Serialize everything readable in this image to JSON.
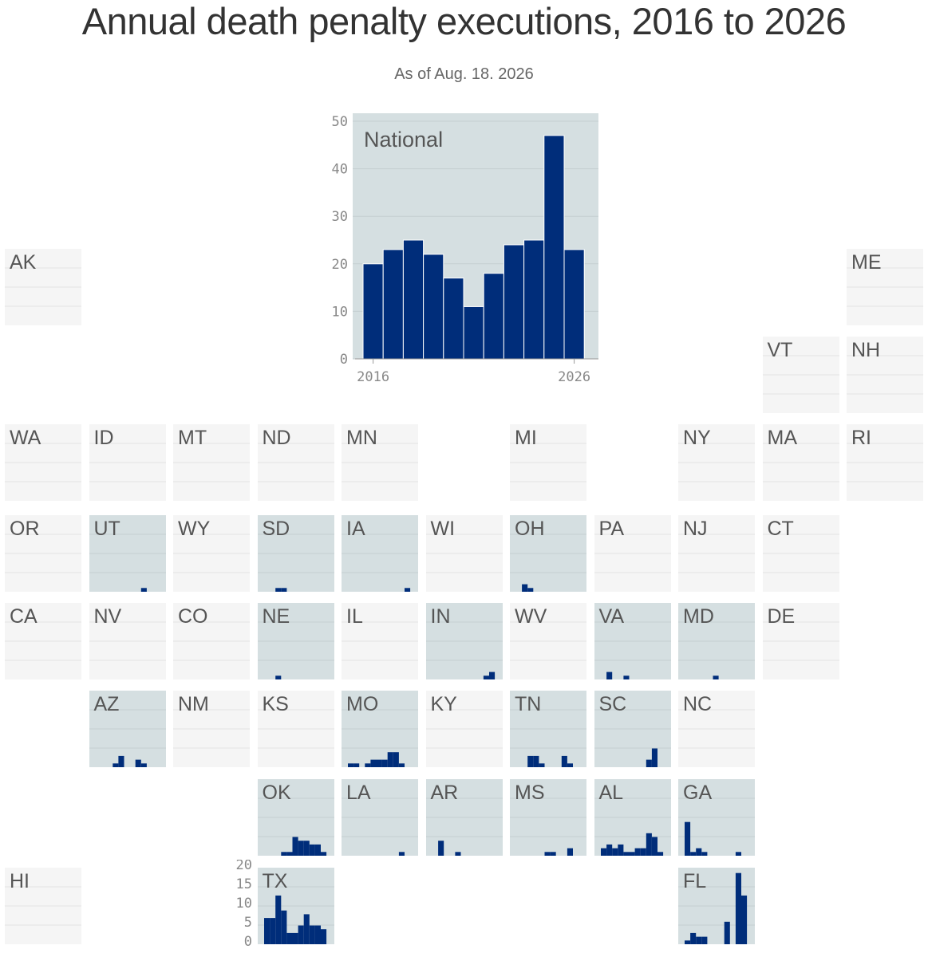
{
  "title": "Annual death penalty executions, 2016 to 2026",
  "subtitle": "As of Aug. 18. 2026",
  "colors": {
    "bar": "#002d7a",
    "active_bg": "#d5dfe1",
    "inactive_bg": "#f5f5f5",
    "grid_active": "#c5cfd1",
    "grid_inactive": "#e4e4e4",
    "bar_border": "#ffffff"
  },
  "chart_data": [
    {
      "type": "bar",
      "title": "National",
      "categories": [
        "2016",
        "2017",
        "2018",
        "2019",
        "2020",
        "2021",
        "2022",
        "2023",
        "2024",
        "2025",
        "2026"
      ],
      "values": [
        20,
        23,
        25,
        22,
        17,
        11,
        18,
        24,
        25,
        47,
        23
      ],
      "ylim": [
        0,
        50
      ],
      "yticks": [
        "0",
        "10",
        "20",
        "30",
        "40",
        "50"
      ],
      "xticks": [
        "2016",
        "2026"
      ],
      "grid": true
    },
    {
      "type": "bar",
      "title": "State tile grid (small multiples)",
      "categories": [
        "2016",
        "2017",
        "2018",
        "2019",
        "2020",
        "2021",
        "2022",
        "2023",
        "2024",
        "2025",
        "2026"
      ],
      "ylim": [
        0,
        20
      ],
      "small_yticks": [
        "0",
        "5",
        "10",
        "15",
        "20"
      ],
      "states": [
        {
          "abbr": "AK",
          "col": 0,
          "row": 0,
          "active": false,
          "values": [
            0,
            0,
            0,
            0,
            0,
            0,
            0,
            0,
            0,
            0,
            0
          ]
        },
        {
          "abbr": "ME",
          "col": 10,
          "row": 0,
          "active": false,
          "values": [
            0,
            0,
            0,
            0,
            0,
            0,
            0,
            0,
            0,
            0,
            0
          ]
        },
        {
          "abbr": "VT",
          "col": 9,
          "row": 1,
          "active": false,
          "values": [
            0,
            0,
            0,
            0,
            0,
            0,
            0,
            0,
            0,
            0,
            0
          ]
        },
        {
          "abbr": "NH",
          "col": 10,
          "row": 1,
          "active": false,
          "values": [
            0,
            0,
            0,
            0,
            0,
            0,
            0,
            0,
            0,
            0,
            0
          ]
        },
        {
          "abbr": "WA",
          "col": 0,
          "row": 2,
          "active": false,
          "values": [
            0,
            0,
            0,
            0,
            0,
            0,
            0,
            0,
            0,
            0,
            0
          ]
        },
        {
          "abbr": "ID",
          "col": 1,
          "row": 2,
          "active": false,
          "values": [
            0,
            0,
            0,
            0,
            0,
            0,
            0,
            0,
            0,
            0,
            0
          ]
        },
        {
          "abbr": "MT",
          "col": 2,
          "row": 2,
          "active": false,
          "values": [
            0,
            0,
            0,
            0,
            0,
            0,
            0,
            0,
            0,
            0,
            0
          ]
        },
        {
          "abbr": "ND",
          "col": 3,
          "row": 2,
          "active": false,
          "values": [
            0,
            0,
            0,
            0,
            0,
            0,
            0,
            0,
            0,
            0,
            0
          ]
        },
        {
          "abbr": "MN",
          "col": 4,
          "row": 2,
          "active": false,
          "values": [
            0,
            0,
            0,
            0,
            0,
            0,
            0,
            0,
            0,
            0,
            0
          ]
        },
        {
          "abbr": "MI",
          "col": 6,
          "row": 2,
          "active": false,
          "values": [
            0,
            0,
            0,
            0,
            0,
            0,
            0,
            0,
            0,
            0,
            0
          ]
        },
        {
          "abbr": "NY",
          "col": 8,
          "row": 2,
          "active": false,
          "values": [
            0,
            0,
            0,
            0,
            0,
            0,
            0,
            0,
            0,
            0,
            0
          ]
        },
        {
          "abbr": "MA",
          "col": 9,
          "row": 2,
          "active": false,
          "values": [
            0,
            0,
            0,
            0,
            0,
            0,
            0,
            0,
            0,
            0,
            0
          ]
        },
        {
          "abbr": "RI",
          "col": 10,
          "row": 2,
          "active": false,
          "values": [
            0,
            0,
            0,
            0,
            0,
            0,
            0,
            0,
            0,
            0,
            0
          ]
        },
        {
          "abbr": "OR",
          "col": 0,
          "row": 3,
          "active": false,
          "values": [
            0,
            0,
            0,
            0,
            0,
            0,
            0,
            0,
            0,
            0,
            0
          ]
        },
        {
          "abbr": "UT",
          "col": 1,
          "row": 3,
          "active": true,
          "values": [
            0,
            0,
            0,
            0,
            0,
            0,
            0,
            0,
            1,
            0,
            0
          ]
        },
        {
          "abbr": "WY",
          "col": 2,
          "row": 3,
          "active": false,
          "values": [
            0,
            0,
            0,
            0,
            0,
            0,
            0,
            0,
            0,
            0,
            0
          ]
        },
        {
          "abbr": "SD",
          "col": 3,
          "row": 3,
          "active": true,
          "values": [
            0,
            0,
            1,
            1,
            0,
            0,
            0,
            0,
            0,
            0,
            0
          ]
        },
        {
          "abbr": "IA",
          "col": 4,
          "row": 3,
          "active": true,
          "values": [
            0,
            0,
            0,
            0,
            0,
            0,
            0,
            0,
            0,
            0,
            1
          ]
        },
        {
          "abbr": "WI",
          "col": 5,
          "row": 3,
          "active": false,
          "values": [
            0,
            0,
            0,
            0,
            0,
            0,
            0,
            0,
            0,
            0,
            0
          ]
        },
        {
          "abbr": "OH",
          "col": 6,
          "row": 3,
          "active": true,
          "values": [
            0,
            2,
            1,
            0,
            0,
            0,
            0,
            0,
            0,
            0,
            0
          ]
        },
        {
          "abbr": "PA",
          "col": 7,
          "row": 3,
          "active": false,
          "values": [
            0,
            0,
            0,
            0,
            0,
            0,
            0,
            0,
            0,
            0,
            0
          ]
        },
        {
          "abbr": "NJ",
          "col": 8,
          "row": 3,
          "active": false,
          "values": [
            0,
            0,
            0,
            0,
            0,
            0,
            0,
            0,
            0,
            0,
            0
          ]
        },
        {
          "abbr": "CT",
          "col": 9,
          "row": 3,
          "active": false,
          "values": [
            0,
            0,
            0,
            0,
            0,
            0,
            0,
            0,
            0,
            0,
            0
          ]
        },
        {
          "abbr": "CA",
          "col": 0,
          "row": 4,
          "active": false,
          "values": [
            0,
            0,
            0,
            0,
            0,
            0,
            0,
            0,
            0,
            0,
            0
          ]
        },
        {
          "abbr": "NV",
          "col": 1,
          "row": 4,
          "active": false,
          "values": [
            0,
            0,
            0,
            0,
            0,
            0,
            0,
            0,
            0,
            0,
            0
          ]
        },
        {
          "abbr": "CO",
          "col": 2,
          "row": 4,
          "active": false,
          "values": [
            0,
            0,
            0,
            0,
            0,
            0,
            0,
            0,
            0,
            0,
            0
          ]
        },
        {
          "abbr": "NE",
          "col": 3,
          "row": 4,
          "active": true,
          "values": [
            0,
            0,
            1,
            0,
            0,
            0,
            0,
            0,
            0,
            0,
            0
          ]
        },
        {
          "abbr": "IL",
          "col": 4,
          "row": 4,
          "active": false,
          "values": [
            0,
            0,
            0,
            0,
            0,
            0,
            0,
            0,
            0,
            0,
            0
          ]
        },
        {
          "abbr": "IN",
          "col": 5,
          "row": 4,
          "active": true,
          "values": [
            0,
            0,
            0,
            0,
            0,
            0,
            0,
            0,
            0,
            1,
            2
          ]
        },
        {
          "abbr": "WV",
          "col": 6,
          "row": 4,
          "active": false,
          "values": [
            0,
            0,
            0,
            0,
            0,
            0,
            0,
            0,
            0,
            0,
            0
          ]
        },
        {
          "abbr": "VA",
          "col": 7,
          "row": 4,
          "active": true,
          "values": [
            0,
            2,
            0,
            0,
            1,
            0,
            0,
            0,
            0,
            0,
            0
          ]
        },
        {
          "abbr": "MD",
          "col": 8,
          "row": 4,
          "active": true,
          "values": [
            0,
            0,
            0,
            0,
            0,
            1,
            0,
            0,
            0,
            0,
            0
          ]
        },
        {
          "abbr": "DE",
          "col": 9,
          "row": 4,
          "active": false,
          "values": [
            0,
            0,
            0,
            0,
            0,
            0,
            0,
            0,
            0,
            0,
            0
          ]
        },
        {
          "abbr": "AZ",
          "col": 1,
          "row": 5,
          "active": true,
          "values": [
            0,
            0,
            0,
            1,
            3,
            0,
            0,
            2,
            1,
            0,
            0
          ]
        },
        {
          "abbr": "NM",
          "col": 2,
          "row": 5,
          "active": false,
          "values": [
            0,
            0,
            0,
            0,
            0,
            0,
            0,
            0,
            0,
            0,
            0
          ]
        },
        {
          "abbr": "KS",
          "col": 3,
          "row": 5,
          "active": false,
          "values": [
            0,
            0,
            0,
            0,
            0,
            0,
            0,
            0,
            0,
            0,
            0
          ]
        },
        {
          "abbr": "MO",
          "col": 4,
          "row": 5,
          "active": true,
          "values": [
            1,
            1,
            0,
            1,
            2,
            2,
            2,
            4,
            4,
            1,
            0
          ]
        },
        {
          "abbr": "KY",
          "col": 5,
          "row": 5,
          "active": false,
          "values": [
            0,
            0,
            0,
            0,
            0,
            0,
            0,
            0,
            0,
            0,
            0
          ]
        },
        {
          "abbr": "TN",
          "col": 6,
          "row": 5,
          "active": true,
          "values": [
            0,
            0,
            3,
            3,
            1,
            0,
            0,
            0,
            3,
            1,
            0
          ]
        },
        {
          "abbr": "SC",
          "col": 7,
          "row": 5,
          "active": true,
          "values": [
            0,
            0,
            0,
            0,
            0,
            0,
            0,
            0,
            2,
            5,
            0
          ]
        },
        {
          "abbr": "NC",
          "col": 8,
          "row": 5,
          "active": false,
          "values": [
            0,
            0,
            0,
            0,
            0,
            0,
            0,
            0,
            0,
            0,
            0
          ]
        },
        {
          "abbr": "OK",
          "col": 3,
          "row": 6,
          "active": true,
          "values": [
            0,
            0,
            0,
            1,
            1,
            5,
            4,
            4,
            3,
            3,
            1
          ]
        },
        {
          "abbr": "LA",
          "col": 4,
          "row": 6,
          "active": true,
          "values": [
            0,
            0,
            0,
            0,
            0,
            0,
            0,
            0,
            0,
            1,
            0
          ]
        },
        {
          "abbr": "AR",
          "col": 5,
          "row": 6,
          "active": true,
          "values": [
            0,
            4,
            0,
            0,
            1,
            0,
            0,
            0,
            0,
            0,
            0
          ]
        },
        {
          "abbr": "MS",
          "col": 6,
          "row": 6,
          "active": true,
          "values": [
            0,
            0,
            0,
            0,
            0,
            1,
            1,
            0,
            0,
            2,
            0
          ]
        },
        {
          "abbr": "AL",
          "col": 7,
          "row": 6,
          "active": true,
          "values": [
            2,
            3,
            2,
            3,
            1,
            1,
            2,
            2,
            6,
            5,
            1
          ]
        },
        {
          "abbr": "GA",
          "col": 8,
          "row": 6,
          "active": true,
          "values": [
            9,
            1,
            2,
            1,
            0,
            0,
            0,
            0,
            0,
            1,
            0
          ]
        },
        {
          "abbr": "HI",
          "col": 0,
          "row": 7,
          "active": false,
          "values": [
            0,
            0,
            0,
            0,
            0,
            0,
            0,
            0,
            0,
            0,
            0
          ]
        },
        {
          "abbr": "TX",
          "col": 3,
          "row": 7,
          "active": true,
          "values": [
            7,
            7,
            13,
            9,
            3,
            3,
            5,
            8,
            5,
            5,
            4
          ]
        },
        {
          "abbr": "FL",
          "col": 8,
          "row": 7,
          "active": true,
          "values": [
            1,
            3,
            2,
            2,
            0,
            0,
            0,
            6,
            0,
            19,
            13
          ]
        }
      ]
    }
  ]
}
